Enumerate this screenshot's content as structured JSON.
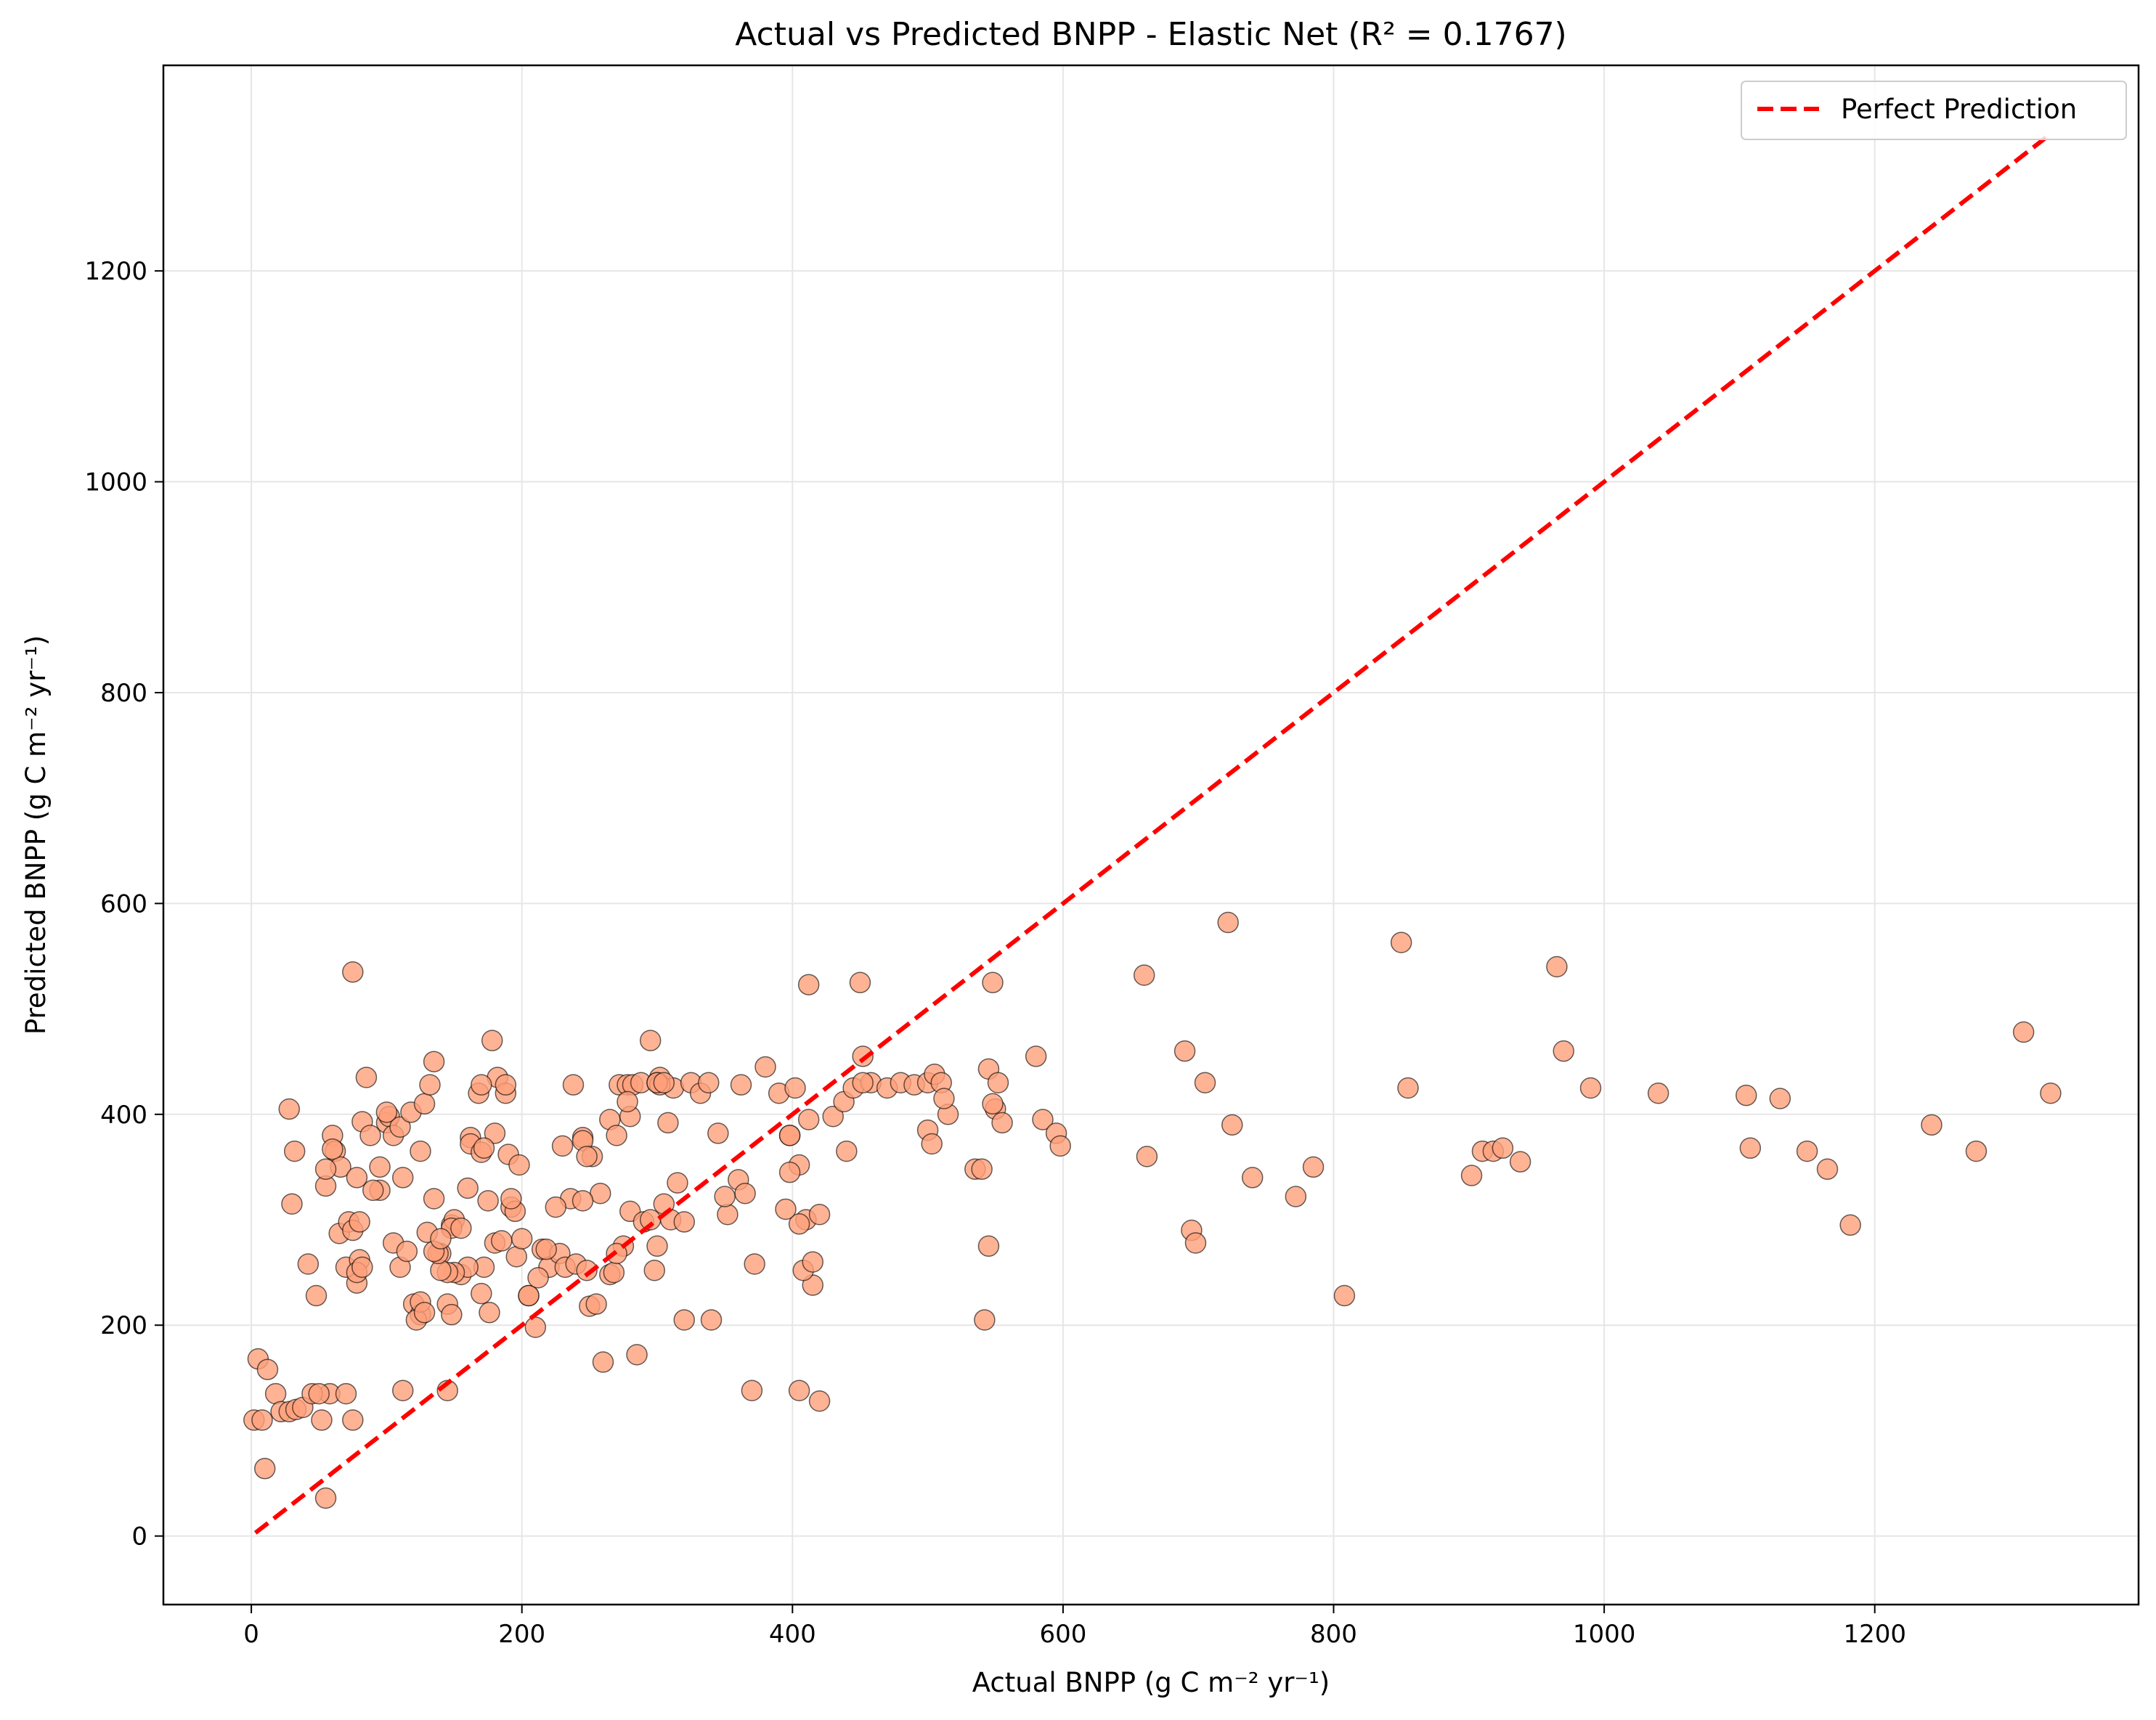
{
  "chart_data": {
    "type": "scatter",
    "title": "Actual vs Predicted BNPP - Elastic Net (R² = 0.1767)",
    "xlabel": "Actual BNPP (g C m⁻² yr⁻¹)",
    "ylabel": "Predicted BNPP (g C m⁻² yr⁻¹)",
    "xlim": [
      -65,
      1395
    ],
    "ylim": [
      -65,
      1395
    ],
    "xticks": [
      0,
      200,
      400,
      600,
      800,
      1000,
      1200
    ],
    "yticks": [
      0,
      200,
      400,
      600,
      800,
      1000,
      1200
    ],
    "grid": true,
    "legend_position": "top-right",
    "colors": {
      "points_fill": "#FFA07A",
      "points_stroke": "#000000",
      "line": "#ff0000",
      "grid": "#e6e6e6"
    },
    "series": [
      {
        "name": "Perfect Prediction",
        "type": "line",
        "style": "dashed",
        "x": [
          3,
          1330
        ],
        "y": [
          3,
          1330
        ]
      },
      {
        "type": "scatter",
        "x": [
          2,
          5,
          8,
          10,
          12,
          18,
          22,
          28,
          33,
          38,
          42,
          48,
          52,
          55,
          58,
          65,
          70,
          75,
          75,
          78,
          55,
          60,
          62,
          66,
          70,
          72,
          75,
          78,
          80,
          82,
          85,
          88,
          95,
          100,
          102,
          105,
          110,
          112,
          28,
          30,
          32,
          45,
          50,
          55,
          60,
          78,
          80,
          82,
          90,
          95,
          100,
          105,
          110,
          115,
          120,
          125,
          112,
          118,
          125,
          130,
          135,
          140,
          145,
          148,
          150,
          155,
          160,
          162,
          168,
          172,
          178,
          182,
          188,
          192,
          196,
          200,
          205,
          210,
          215,
          220,
          228,
          232,
          236,
          240,
          245,
          248,
          250,
          255,
          260,
          265,
          270,
          275,
          280,
          285,
          290,
          295,
          300,
          305,
          310,
          315,
          320,
          180,
          185,
          190,
          195,
          160,
          170,
          175,
          150,
          145,
          140,
          128,
          135,
          132,
          138,
          148,
          155,
          162,
          170,
          180,
          188,
          192,
          198,
          205,
          212,
          218,
          225,
          230,
          238,
          245,
          252,
          258,
          265,
          272,
          278,
          282,
          288,
          295,
          302,
          308,
          312,
          325,
          332,
          338,
          345,
          352,
          360,
          365,
          372,
          380,
          390,
          398,
          405,
          410,
          415,
          420,
          430,
          438,
          445,
          452,
          458,
          470,
          480,
          490,
          500,
          505,
          510,
          515,
          535,
          540,
          545,
          550,
          555,
          580,
          585,
          595,
          598,
          340,
          350,
          300,
          302,
          280,
          278,
          170,
          172,
          176,
          145,
          148,
          122,
          125,
          128,
          135,
          140,
          405,
          408,
          415,
          420,
          440,
          450,
          545,
          548,
          552,
          398,
          402,
          412,
          500,
          503,
          512,
          395,
          398,
          660,
          662,
          690,
          695,
          698,
          705,
          722,
          725,
          740,
          772,
          785,
          808,
          850,
          855,
          902,
          910,
          918,
          925,
          938,
          965,
          970,
          990,
          1040,
          1105,
          1108,
          1130,
          1150,
          1165,
          1182,
          1242,
          1275,
          1310,
          1330,
          362,
          370,
          268,
          270,
          245,
          248,
          320,
          405,
          412,
          452,
          542,
          548,
          298,
          300,
          305
        ],
        "y": [
          110,
          168,
          110,
          64,
          158,
          135,
          118,
          118,
          120,
          122,
          258,
          228,
          110,
          332,
          135,
          287,
          135,
          110,
          535,
          240,
          36,
          380,
          365,
          350,
          255,
          298,
          290,
          340,
          262,
          393,
          435,
          380,
          328,
          392,
          398,
          380,
          388,
          340,
          405,
          315,
          365,
          135,
          135,
          348,
          367,
          250,
          298,
          255,
          328,
          350,
          402,
          278,
          255,
          270,
          220,
          210,
          138,
          402,
          365,
          288,
          320,
          268,
          138,
          295,
          300,
          248,
          330,
          378,
          420,
          255,
          470,
          435,
          420,
          312,
          265,
          282,
          228,
          198,
          272,
          255,
          268,
          255,
          320,
          258,
          378,
          252,
          218,
          220,
          165,
          395,
          380,
          275,
          308,
          172,
          298,
          300,
          275,
          315,
          300,
          335,
          298,
          278,
          280,
          362,
          308,
          255,
          230,
          318,
          250,
          250,
          252,
          410,
          450,
          428,
          268,
          292,
          292,
          372,
          428,
          382,
          428,
          320,
          352,
          228,
          245,
          272,
          312,
          370,
          428,
          375,
          360,
          325,
          248,
          428,
          428,
          428,
          430,
          470,
          435,
          392,
          425,
          430,
          420,
          430,
          382,
          305,
          338,
          325,
          258,
          445,
          420,
          380,
          352,
          300,
          238,
          128,
          398,
          412,
          425,
          455,
          430,
          425,
          430,
          428,
          430,
          438,
          430,
          400,
          348,
          348,
          275,
          405,
          392,
          455,
          395,
          382,
          370,
          205,
          322,
          430,
          428,
          398,
          412,
          364,
          368,
          212,
          220,
          210,
          205,
          222,
          212,
          270,
          282,
          296,
          252,
          260,
          305,
          365,
          525,
          443,
          410,
          430,
          345,
          425,
          395,
          385,
          372,
          415,
          310,
          380,
          532,
          360,
          460,
          290,
          278,
          430,
          582,
          390,
          340,
          322,
          350,
          228,
          563,
          425,
          342,
          365,
          365,
          368,
          355,
          540,
          460,
          425,
          420,
          418,
          368,
          415,
          365,
          348,
          295,
          390,
          365,
          478,
          420,
          428,
          138,
          250,
          268,
          318,
          360,
          205,
          138,
          523,
          430,
          205,
          525,
          252,
          430,
          430
        ]
      }
    ]
  }
}
